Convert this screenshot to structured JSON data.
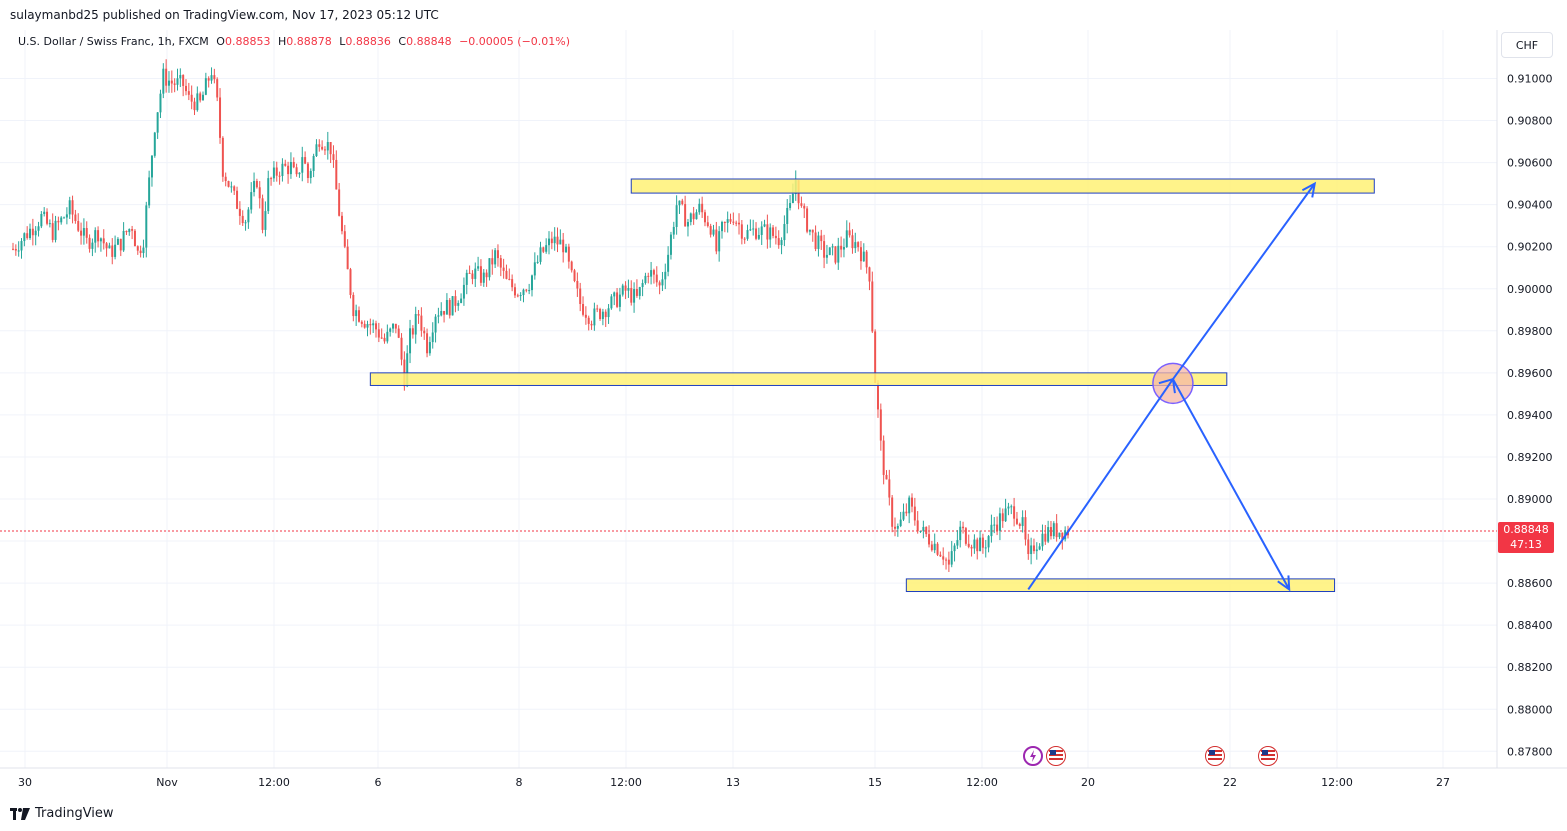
{
  "header": {
    "publisher": "sulaymanbd25 published on TradingView.com, Nov 17, 2023 05:12 UTC"
  },
  "legend": {
    "symbol": "U.S. Dollar / Swiss Franc, 1h, FXCM",
    "open_label": "O",
    "open": "0.88853",
    "high_label": "H",
    "high": "0.88878",
    "low_label": "L",
    "low": "0.88836",
    "close_label": "C",
    "close": "0.88848",
    "change": "−0.00005 (−0.01%)"
  },
  "currency_button": "CHF",
  "price_tag": {
    "price": "0.88848",
    "countdown": "47:13"
  },
  "footer": {
    "brand": "TradingView"
  },
  "colors": {
    "up": "#26a69a",
    "down": "#ef5350",
    "zone_fill": "#fff176",
    "zone_border": "#1e3fbf",
    "arrow": "#2962ff",
    "circle": "#f6b7a6",
    "price_line": "#f23645"
  },
  "chart_data": {
    "type": "candlestick",
    "symbol": "USDCHF",
    "timeframe": "1h",
    "ylim": [
      0.877,
      0.9115
    ],
    "y_ticks": [
      "0.91000",
      "0.90800",
      "0.90600",
      "0.90400",
      "0.90200",
      "0.90000",
      "0.89800",
      "0.89600",
      "0.89400",
      "0.89200",
      "0.89000",
      "0.88800",
      "0.88600",
      "0.88400",
      "0.88200",
      "0.88000",
      "0.87800"
    ],
    "x_ticks": [
      "30",
      "Nov",
      "12:00",
      "6",
      "8",
      "12:00",
      "13",
      "15",
      "12:00",
      "20",
      "22",
      "12:00",
      "27"
    ],
    "last_price": 0.88848,
    "close_path": [
      [
        0,
        0.9019
      ],
      [
        6,
        0.9028
      ],
      [
        10,
        0.9034
      ],
      [
        14,
        0.9027
      ],
      [
        20,
        0.9038
      ],
      [
        26,
        0.9022
      ],
      [
        30,
        0.9027
      ],
      [
        34,
        0.9017
      ],
      [
        38,
        0.9022
      ],
      [
        40,
        0.9027
      ],
      [
        42,
        0.903
      ],
      [
        44,
        0.9017
      ],
      [
        46,
        0.9024
      ],
      [
        50,
        0.9078
      ],
      [
        53,
        0.9101
      ],
      [
        56,
        0.9098
      ],
      [
        60,
        0.9097
      ],
      [
        62,
        0.909
      ],
      [
        66,
        0.9088
      ],
      [
        70,
        0.9104
      ],
      [
        72,
        0.9088
      ],
      [
        74,
        0.9057
      ],
      [
        78,
        0.9043
      ],
      [
        82,
        0.9033
      ],
      [
        86,
        0.9052
      ],
      [
        88,
        0.903
      ],
      [
        90,
        0.905
      ],
      [
        94,
        0.9057
      ],
      [
        98,
        0.9058
      ],
      [
        100,
        0.9051
      ],
      [
        102,
        0.9064
      ],
      [
        104,
        0.9053
      ],
      [
        108,
        0.9072
      ],
      [
        112,
        0.9067
      ],
      [
        117,
        0.9016
      ],
      [
        120,
        0.8991
      ],
      [
        124,
        0.8985
      ],
      [
        128,
        0.8981
      ],
      [
        131,
        0.8975
      ],
      [
        135,
        0.8983
      ],
      [
        138,
        0.8958
      ],
      [
        140,
        0.8977
      ],
      [
        143,
        0.8988
      ],
      [
        146,
        0.8973
      ],
      [
        149,
        0.8989
      ],
      [
        152,
        0.8991
      ],
      [
        155,
        0.8992
      ],
      [
        158,
        0.8999
      ],
      [
        162,
        0.9008
      ],
      [
        166,
        0.9005
      ],
      [
        170,
        0.9016
      ],
      [
        174,
        0.9003
      ],
      [
        178,
        0.8999
      ],
      [
        182,
        0.9003
      ],
      [
        186,
        0.9016
      ],
      [
        190,
        0.9023
      ],
      [
        194,
        0.9021
      ],
      [
        197,
        0.9005
      ],
      [
        200,
        0.8993
      ],
      [
        204,
        0.8986
      ],
      [
        208,
        0.899
      ],
      [
        212,
        0.8994
      ],
      [
        216,
        0.8999
      ],
      [
        220,
        0.8995
      ],
      [
        224,
        0.9009
      ],
      [
        228,
        0.9001
      ],
      [
        231,
        0.9017
      ],
      [
        234,
        0.904
      ],
      [
        238,
        0.9032
      ],
      [
        242,
        0.9038
      ],
      [
        246,
        0.903
      ],
      [
        248,
        0.9018
      ],
      [
        250,
        0.9028
      ],
      [
        254,
        0.9035
      ],
      [
        258,
        0.9026
      ],
      [
        262,
        0.9028
      ],
      [
        266,
        0.9027
      ],
      [
        270,
        0.9024
      ],
      [
        274,
        0.9038
      ],
      [
        276,
        0.9052
      ],
      [
        278,
        0.9037
      ],
      [
        282,
        0.9025
      ],
      [
        286,
        0.9017
      ],
      [
        290,
        0.9016
      ],
      [
        294,
        0.9024
      ],
      [
        298,
        0.9021
      ],
      [
        300,
        0.9014
      ],
      [
        302,
        0.9007
      ],
      [
        304,
        0.8957
      ],
      [
        306,
        0.8925
      ],
      [
        308,
        0.8905
      ],
      [
        310,
        0.889
      ],
      [
        312,
        0.8886
      ],
      [
        316,
        0.8897
      ],
      [
        320,
        0.8885
      ],
      [
        324,
        0.888
      ],
      [
        328,
        0.8874
      ],
      [
        330,
        0.8868
      ],
      [
        334,
        0.8885
      ],
      [
        338,
        0.888
      ],
      [
        342,
        0.8877
      ],
      [
        346,
        0.8888
      ],
      [
        350,
        0.8893
      ],
      [
        353,
        0.8895
      ],
      [
        356,
        0.8887
      ],
      [
        358,
        0.887
      ],
      [
        360,
        0.8878
      ],
      [
        364,
        0.8884
      ],
      [
        368,
        0.8885
      ],
      [
        372,
        0.8885
      ]
    ],
    "zones": [
      {
        "name": "resistance",
        "from_bar": 218,
        "to_bar": 480,
        "low": 0.90455,
        "high": 0.90522
      },
      {
        "name": "middle",
        "from_bar": 126,
        "to_bar": 428,
        "low": 0.8954,
        "high": 0.896
      },
      {
        "name": "support",
        "from_bar": 315,
        "to_bar": 466,
        "low": 0.8856,
        "high": 0.8862
      }
    ],
    "projection_up": [
      [
        358,
        0.8857
      ],
      [
        409,
        0.8957
      ],
      [
        459,
        0.905
      ]
    ],
    "projection_down": [
      [
        409,
        0.8957
      ],
      [
        450,
        0.8857
      ]
    ],
    "target_circle": [
      409,
      0.8955
    ]
  }
}
